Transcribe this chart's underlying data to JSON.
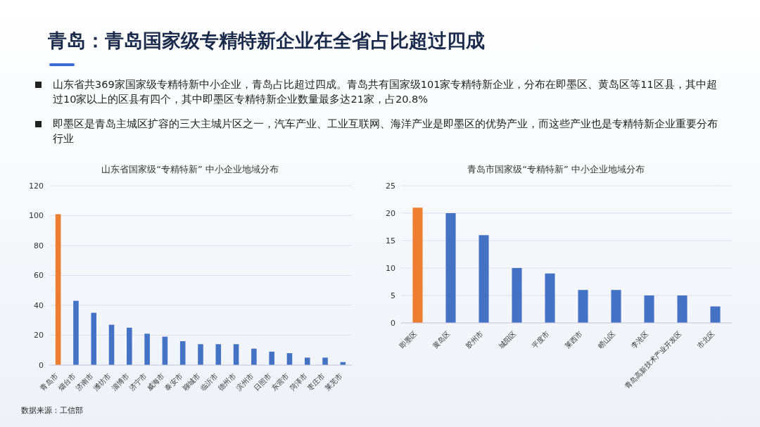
{
  "chart_data": [
    {
      "type": "other",
      "title": "青岛：青岛国家级专精特新企业在全省占比超过四成",
      "annotations": [
        "山东省共369家国家级专精特新中小企业，青岛占比超过四成。青岛共有国家级101家专精特新企业，分布在即墨区、黄岛区等11区县，其中超过10家以上的区县有四个，其中即墨区专精特新企业数量最多达21家，占20.8%",
        "即墨区是青岛主城区扩容的三大主城片区之一，汽车产业、工业互联网、海洋产业是即墨区的优势产业，而这些产业也是专精特新企业重要分布行业"
      ]
    },
    {
      "type": "bar",
      "title": "山东省国家级“专精特新” 中小企业地域分布",
      "categories": [
        "青岛市",
        "烟台市",
        "济南市",
        "潍坊市",
        "淄博市",
        "济宁市",
        "威海市",
        "泰安市",
        "聊城市",
        "临沂市",
        "德州市",
        "滨州市",
        "日照市",
        "东营市",
        "菏泽市",
        "枣庄市",
        "莱芜市"
      ],
      "values": [
        101,
        43,
        35,
        27,
        25,
        21,
        19,
        16,
        14,
        14,
        14,
        11,
        9,
        8,
        5,
        5,
        2
      ],
      "colors": [
        "#ed7d31",
        "#4472c4",
        "#4472c4",
        "#4472c4",
        "#4472c4",
        "#4472c4",
        "#4472c4",
        "#4472c4",
        "#4472c4",
        "#4472c4",
        "#4472c4",
        "#4472c4",
        "#4472c4",
        "#4472c4",
        "#4472c4",
        "#4472c4",
        "#4472c4"
      ],
      "ylim": [
        0,
        120
      ],
      "yticks": [
        0,
        20,
        40,
        60,
        80,
        100,
        120
      ],
      "grid": "y",
      "legend": false,
      "annotations": [
        "数据来源：工信部"
      ]
    },
    {
      "type": "bar",
      "title": "青岛市国家级“专精特新” 中小企业地域分布",
      "categories": [
        "即墨区",
        "黄岛区",
        "胶州市",
        "城阳区",
        "平度市",
        "莱西市",
        "崂山区",
        "李沧区",
        "青岛高新技术产业开发区",
        "市北区"
      ],
      "values": [
        21,
        20,
        16,
        10,
        9,
        6,
        6,
        5,
        5,
        3
      ],
      "colors": [
        "#ed7d31",
        "#4472c4",
        "#4472c4",
        "#4472c4",
        "#4472c4",
        "#4472c4",
        "#4472c4",
        "#4472c4",
        "#4472c4",
        "#4472c4"
      ],
      "ylim": [
        0,
        25
      ],
      "yticks": [
        0,
        5,
        10,
        15,
        20,
        25
      ],
      "grid": "y",
      "legend": false
    }
  ]
}
